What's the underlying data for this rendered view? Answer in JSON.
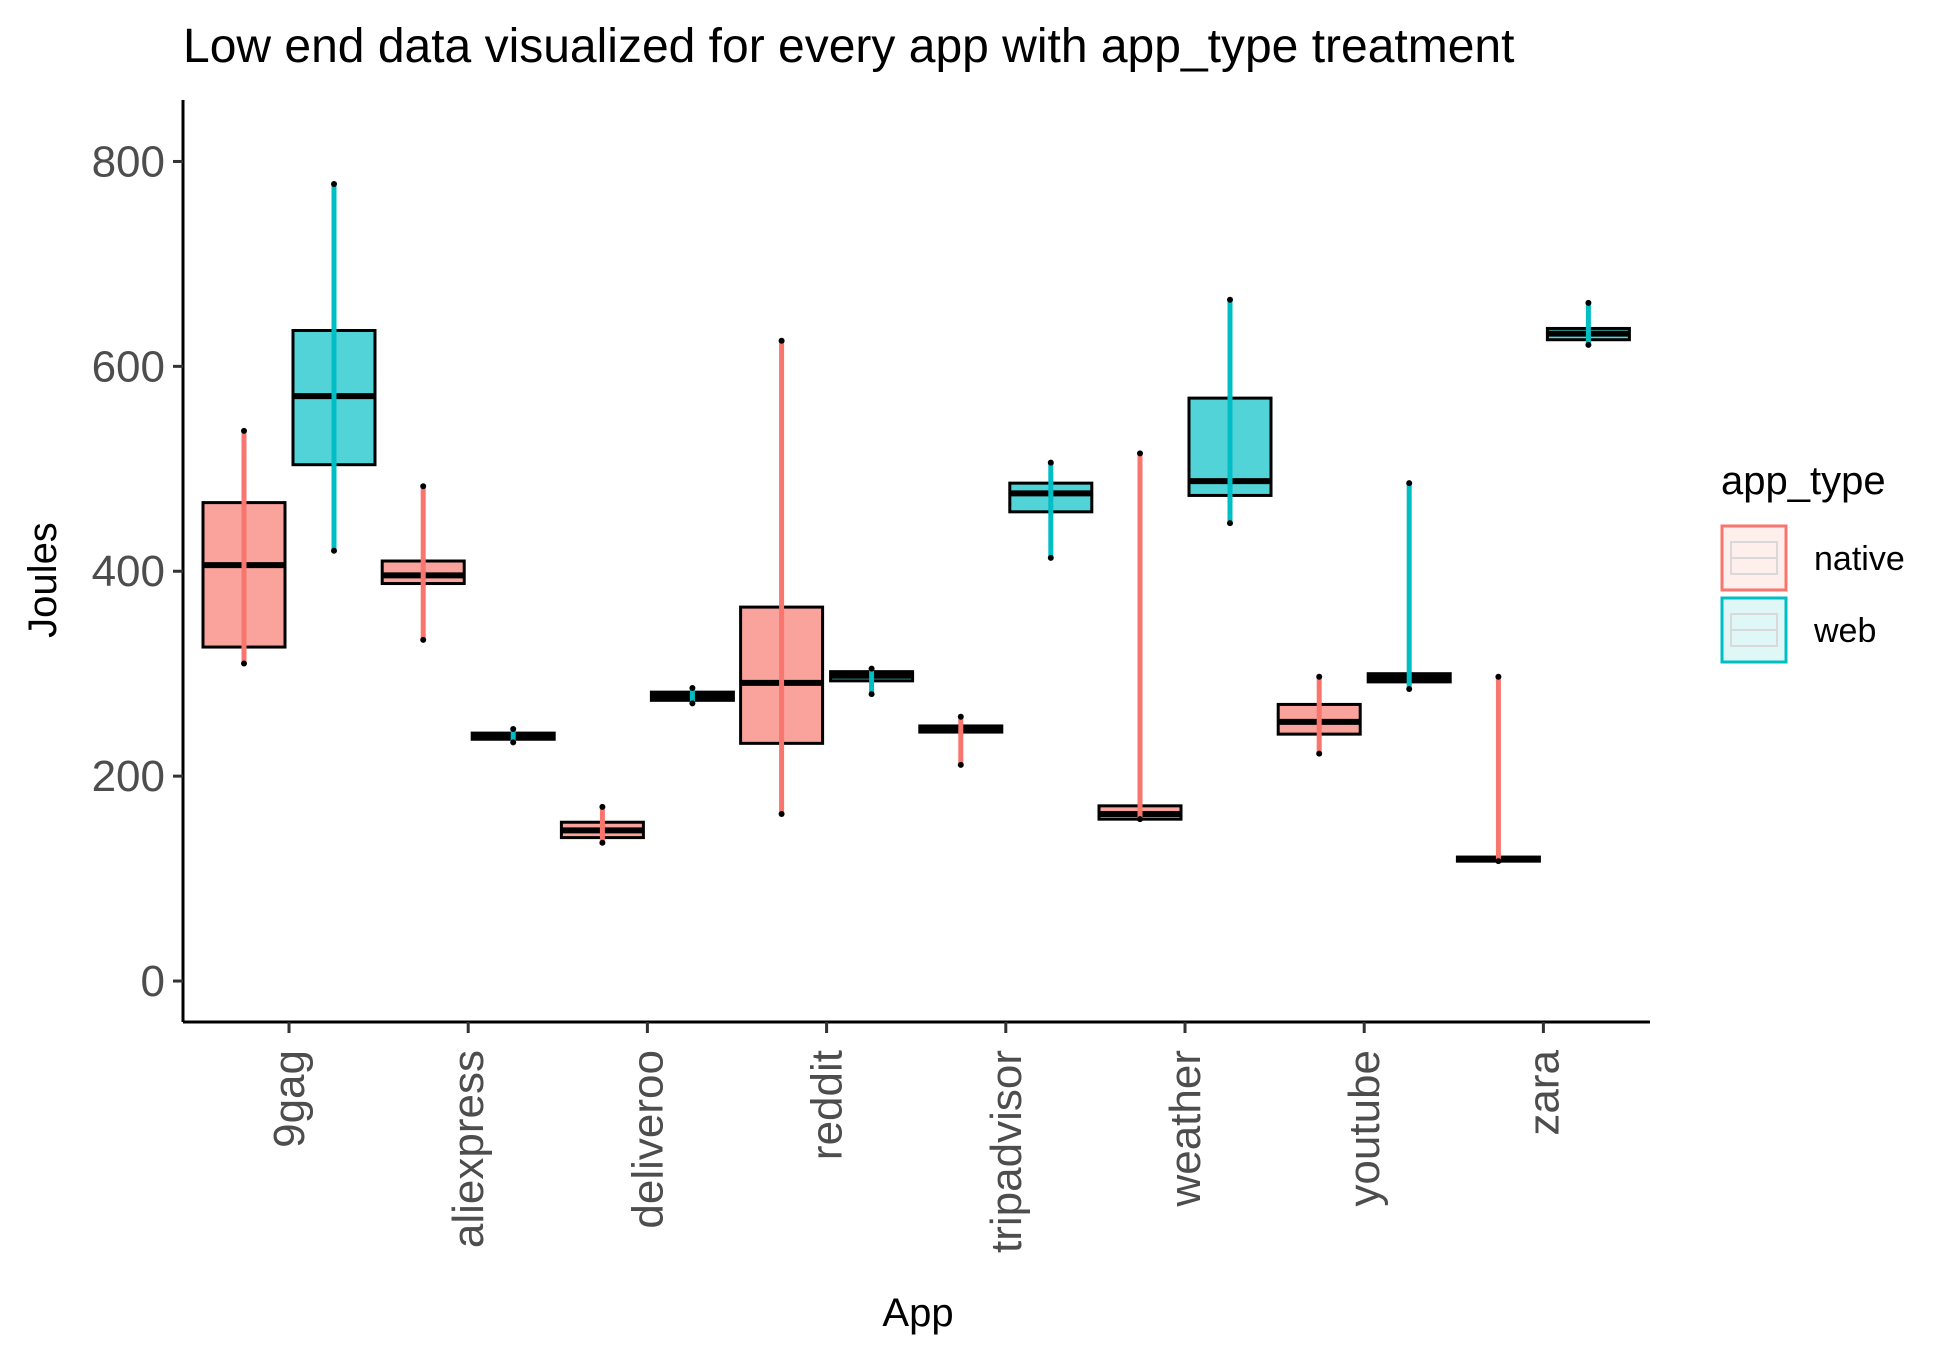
{
  "chart_data": {
    "type": "box",
    "title": "Low end data visualized for every app with app_type treatment",
    "xlabel": "App",
    "ylabel": "Joules",
    "ylim": [
      -40,
      860
    ],
    "yticks": [
      0,
      200,
      400,
      600,
      800
    ],
    "categories": [
      "9gag",
      "aliexpress",
      "deliveroo",
      "reddit",
      "tripadvisor",
      "weather",
      "youtube",
      "zara"
    ],
    "legend": {
      "title": "app_type",
      "position": "right",
      "entries": [
        "native",
        "web"
      ]
    },
    "colors": {
      "native": "#F8766D",
      "web": "#00BFC4"
    },
    "series": [
      {
        "name": "native",
        "boxes": [
          {
            "category": "9gag",
            "min": 310,
            "q1": 326,
            "median": 406,
            "q3": 467,
            "max": 537
          },
          {
            "category": "aliexpress",
            "min": 333,
            "q1": 388,
            "median": 396,
            "q3": 410,
            "max": 483
          },
          {
            "category": "deliveroo",
            "min": 135,
            "q1": 140,
            "median": 147,
            "q3": 155,
            "max": 170
          },
          {
            "category": "reddit",
            "min": 163,
            "q1": 232,
            "median": 291,
            "q3": 365,
            "max": 625
          },
          {
            "category": "tripadvisor",
            "min": 211,
            "q1": 243,
            "median": 246,
            "q3": 249,
            "max": 258
          },
          {
            "category": "weather",
            "min": 158,
            "q1": 158,
            "median": 163,
            "q3": 171,
            "max": 515
          },
          {
            "category": "youtube",
            "min": 222,
            "q1": 241,
            "median": 253,
            "q3": 270,
            "max": 297
          },
          {
            "category": "zara",
            "min": 117,
            "q1": 117,
            "median": 119,
            "q3": 121,
            "max": 297
          }
        ]
      },
      {
        "name": "web",
        "boxes": [
          {
            "category": "9gag",
            "min": 420,
            "q1": 504,
            "median": 571,
            "q3": 635,
            "max": 778
          },
          {
            "category": "aliexpress",
            "min": 233,
            "q1": 236,
            "median": 239,
            "q3": 242,
            "max": 246
          },
          {
            "category": "deliveroo",
            "min": 271,
            "q1": 274,
            "median": 278,
            "q3": 282,
            "max": 286
          },
          {
            "category": "reddit",
            "min": 280,
            "q1": 293,
            "median": 298,
            "q3": 302,
            "max": 305
          },
          {
            "category": "tripadvisor",
            "min": 413,
            "q1": 458,
            "median": 476,
            "q3": 486,
            "max": 506
          },
          {
            "category": "weather",
            "min": 447,
            "q1": 474,
            "median": 488,
            "q3": 569,
            "max": 665
          },
          {
            "category": "youtube",
            "min": 285,
            "q1": 292,
            "median": 296,
            "q3": 300,
            "max": 486
          },
          {
            "category": "zara",
            "min": 621,
            "q1": 626,
            "median": 632,
            "q3": 637,
            "max": 662
          }
        ]
      }
    ]
  }
}
